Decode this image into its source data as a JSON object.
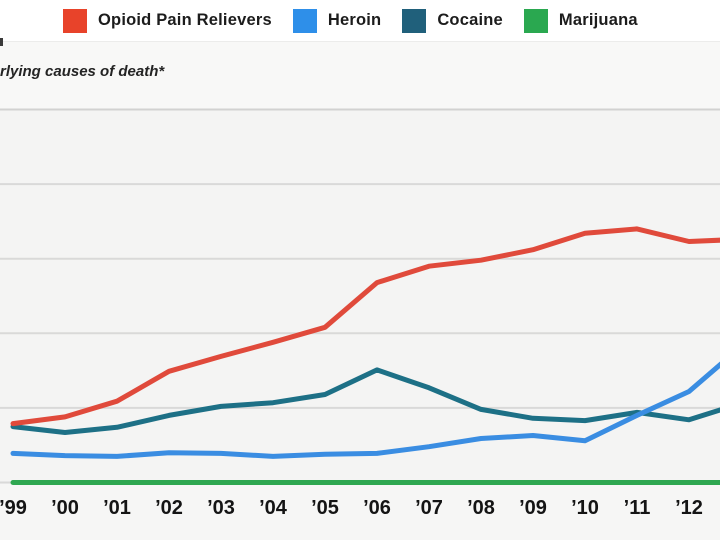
{
  "subtitle": "rlying causes of death*",
  "legend": {
    "items": [
      {
        "label": "Opioid Pain Relievers",
        "color": "#e8432a"
      },
      {
        "label": "Heroin",
        "color": "#2e8fe9"
      },
      {
        "label": "Cocaine",
        "color": "#20607b"
      },
      {
        "label": "Marijuana",
        "color": "#2aa850"
      }
    ]
  },
  "chart_data": {
    "type": "line",
    "title": "",
    "xlabel": "",
    "ylabel": "",
    "note": "y-axis tick labels are cropped out of the screenshot; values are in gridline units (0 = bottom baseline, 1 unit = one gridline spacing); 2013 point extends past the right crop edge",
    "x_years": [
      1999,
      2000,
      2001,
      2002,
      2003,
      2004,
      2005,
      2006,
      2007,
      2008,
      2009,
      2010,
      2011,
      2012,
      2013
    ],
    "x_tick_labels": [
      "’99",
      "’00",
      "’01",
      "’02",
      "’03",
      "’04",
      "’05",
      "’06",
      "’07",
      "’08",
      "’09",
      "’10",
      "’11",
      "’12"
    ],
    "ylim": [
      0,
      5.2
    ],
    "grid": true,
    "gridline_count": 6,
    "legend_position": "top",
    "series": [
      {
        "name": "Opioid Pain Relievers",
        "color": "#e04a3b",
        "z": 3,
        "values": [
          0.79,
          0.88,
          1.09,
          1.49,
          1.69,
          1.88,
          2.08,
          2.68,
          2.9,
          2.98,
          3.12,
          3.34,
          3.4,
          3.23,
          3.26
        ]
      },
      {
        "name": "Heroin",
        "color": "#3a8de2",
        "z": 4,
        "values": [
          0.39,
          0.36,
          0.35,
          0.4,
          0.39,
          0.35,
          0.38,
          0.39,
          0.48,
          0.59,
          0.63,
          0.56,
          0.9,
          1.22,
          1.82
        ]
      },
      {
        "name": "Cocaine",
        "color": "#1d7086",
        "z": 2,
        "values": [
          0.75,
          0.67,
          0.74,
          0.9,
          1.02,
          1.07,
          1.18,
          1.51,
          1.27,
          0.98,
          0.86,
          0.83,
          0.94,
          0.84,
          1.06
        ]
      },
      {
        "name": "Marijuana",
        "color": "#2fa751",
        "z": 1,
        "values": [
          0,
          0,
          0,
          0,
          0,
          0,
          0,
          0,
          0,
          0,
          0,
          0,
          0,
          0,
          0
        ]
      }
    ]
  },
  "colors": {
    "page_bg": "#f4f4f3",
    "legend_bg": "#ffffff",
    "grid": "#d9d9d8",
    "grid_top": "#d2d2d1",
    "tick_label": "#141414"
  }
}
